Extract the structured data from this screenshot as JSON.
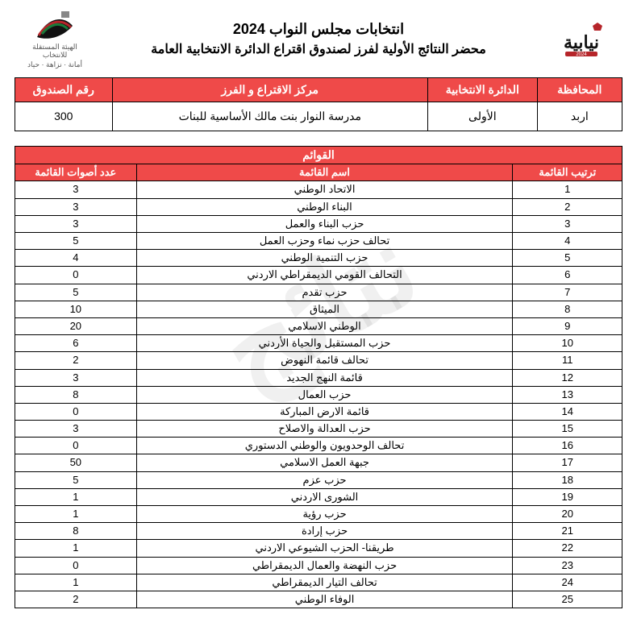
{
  "watermark": "نتائج",
  "titles": {
    "main": "انتخابات مجلس النواب 2024",
    "sub": "محضر النتائج الأولية لفرز لصندوق اقتراع الدائرة الانتخابية العامة"
  },
  "logo_left_caption_1": "الهيئة المستقلة",
  "logo_left_caption_2": "للانتخاب",
  "logo_left_caption_3": "أمانة · نزاهة · حياد",
  "logo_right_caption_1": "نيابية",
  "logo_right_caption_2": "2024",
  "info": {
    "headers": {
      "gov": "المحافظة",
      "dist": "الدائرة الانتخابية",
      "center": "مركز الاقتراع و الفرز",
      "box": "رقم الصندوق"
    },
    "values": {
      "gov": "اربد",
      "dist": "الأولى",
      "center": "مدرسة النوار بنت مالك الأساسية للبنات",
      "box": "300"
    }
  },
  "lists": {
    "section_title": "القوائم",
    "headers": {
      "rank": "ترتيب القائمة",
      "name": "اسم القائمة",
      "votes": "عدد أصوات القائمة"
    },
    "rows": [
      {
        "rank": "1",
        "name": "الاتحاد الوطني",
        "votes": "3"
      },
      {
        "rank": "2",
        "name": "البناء الوطني",
        "votes": "3"
      },
      {
        "rank": "3",
        "name": "حزب البناء والعمل",
        "votes": "3"
      },
      {
        "rank": "4",
        "name": "تحالف حزب نماء وحزب العمل",
        "votes": "5"
      },
      {
        "rank": "5",
        "name": "حزب التنمية الوطني",
        "votes": "4"
      },
      {
        "rank": "6",
        "name": "التحالف القومي الديمقراطي الاردني",
        "votes": "0"
      },
      {
        "rank": "7",
        "name": "حزب تقدم",
        "votes": "5"
      },
      {
        "rank": "8",
        "name": "الميثاق",
        "votes": "10"
      },
      {
        "rank": "9",
        "name": "الوطني الاسلامي",
        "votes": "20"
      },
      {
        "rank": "10",
        "name": "حزب المستقبل والحياة الأردني",
        "votes": "6"
      },
      {
        "rank": "11",
        "name": "تحالف قائمة النهوض",
        "votes": "2"
      },
      {
        "rank": "12",
        "name": "قائمة النهج الجديد",
        "votes": "3"
      },
      {
        "rank": "13",
        "name": "حزب العمال",
        "votes": "8"
      },
      {
        "rank": "14",
        "name": "قائمة الارض المباركة",
        "votes": "0"
      },
      {
        "rank": "15",
        "name": "حزب العدالة والاصلاح",
        "votes": "3"
      },
      {
        "rank": "16",
        "name": "تحالف الوحدويون والوطني الدستوري",
        "votes": "0"
      },
      {
        "rank": "17",
        "name": "جبهة العمل الاسلامي",
        "votes": "50"
      },
      {
        "rank": "18",
        "name": "حزب عزم",
        "votes": "5"
      },
      {
        "rank": "19",
        "name": "الشورى الاردني",
        "votes": "1"
      },
      {
        "rank": "20",
        "name": "حزب رؤية",
        "votes": "1"
      },
      {
        "rank": "21",
        "name": "حزب إرادة",
        "votes": "8"
      },
      {
        "rank": "22",
        "name": "طريقنا- الحزب الشيوعي الاردني",
        "votes": "1"
      },
      {
        "rank": "23",
        "name": "حزب النهضة والعمال الديمقراطي",
        "votes": "0"
      },
      {
        "rank": "24",
        "name": "تحالف التيار الديمقراطي",
        "votes": "1"
      },
      {
        "rank": "25",
        "name": "الوفاء الوطني",
        "votes": "2"
      }
    ]
  },
  "colors": {
    "accent": "#ef4a49",
    "text": "#000000",
    "bg": "#ffffff"
  }
}
